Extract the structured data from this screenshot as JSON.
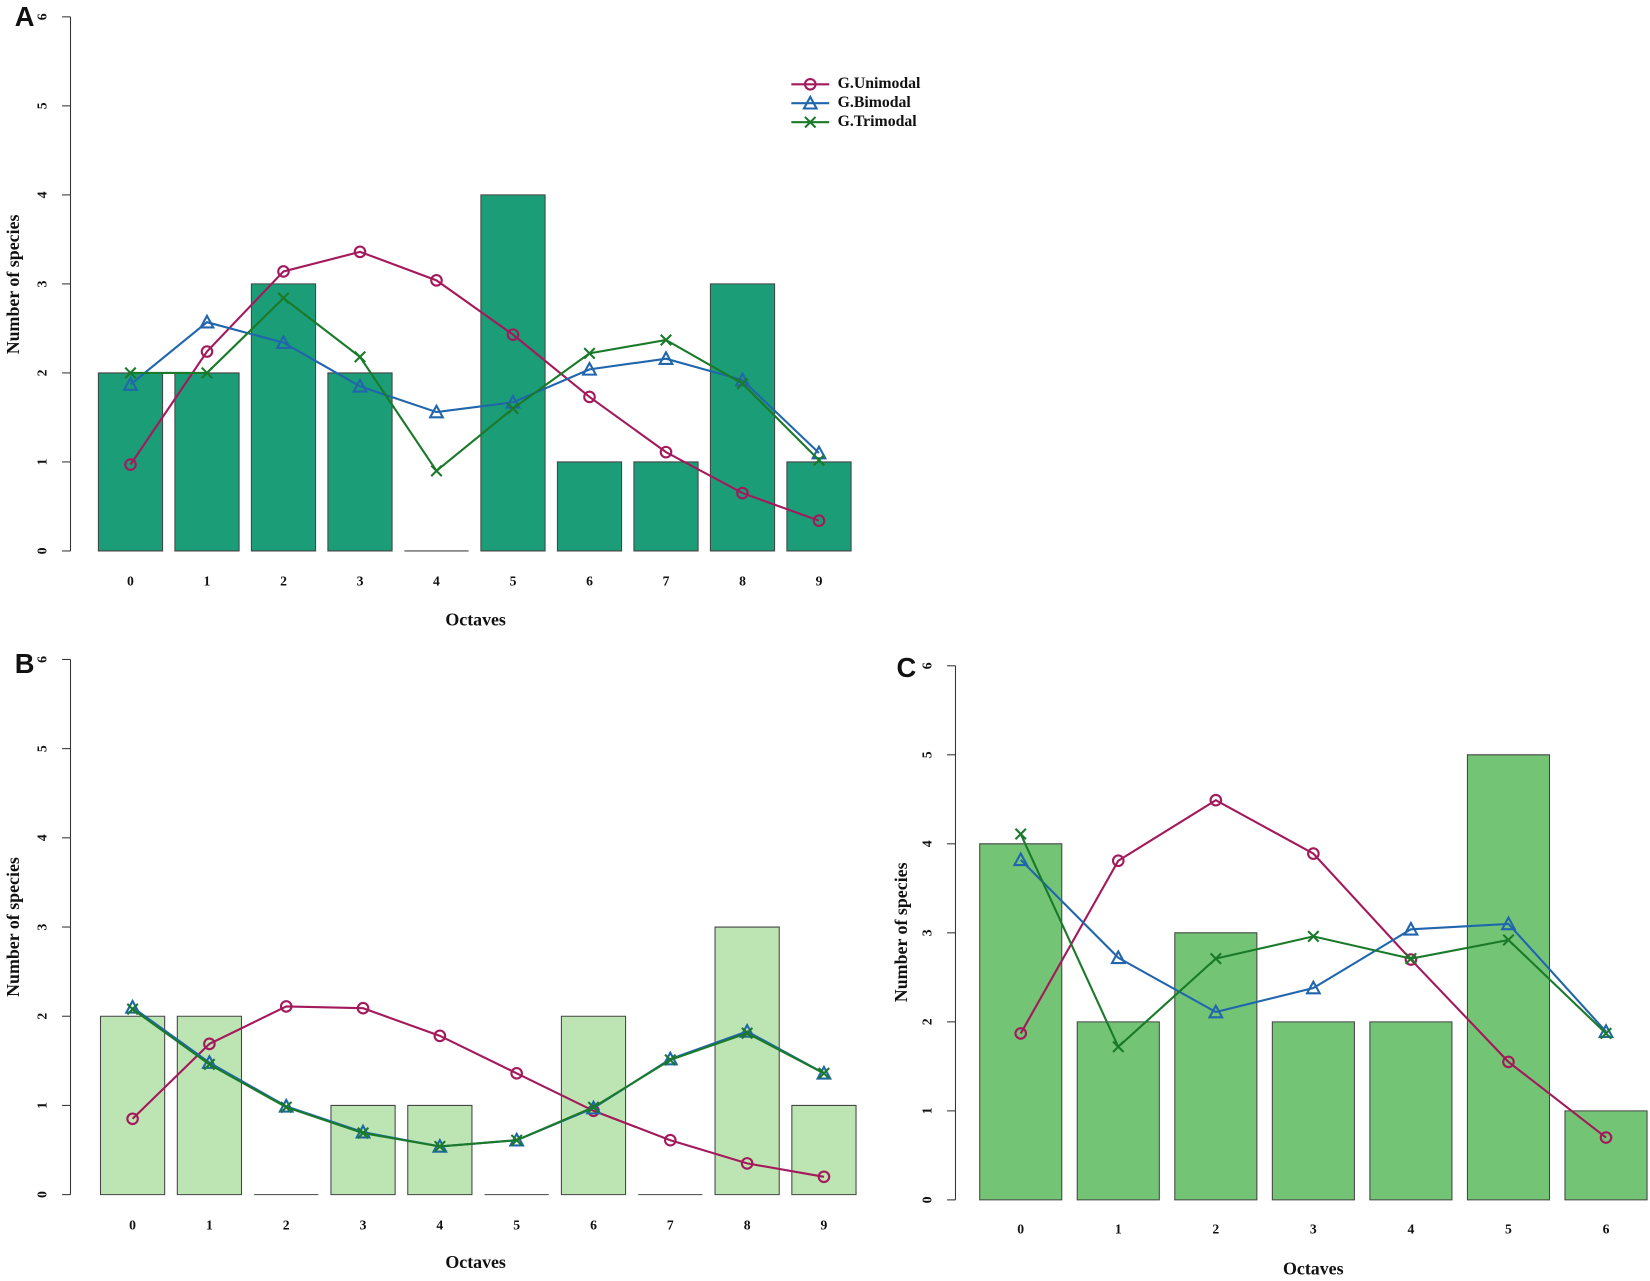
{
  "chart_data": [
    {
      "type": "bar",
      "panel": "A",
      "xlabel": "Octaves",
      "ylabel": "Number of species",
      "categories": [
        "0",
        "1",
        "2",
        "3",
        "4",
        "5",
        "6",
        "7",
        "8",
        "9"
      ],
      "values": [
        2,
        2,
        3,
        2,
        0,
        4,
        1,
        1,
        3,
        1
      ],
      "color": "#1b9e77",
      "ylim": [
        0,
        6
      ],
      "yticks": [
        0,
        1,
        2,
        3,
        4,
        5,
        6
      ],
      "legend": "top-center",
      "series": [
        {
          "name": "G.Unimodal",
          "color": "#a3195b",
          "marker": "circle",
          "values": [
            0.97,
            2.24,
            3.14,
            3.36,
            3.04,
            2.43,
            1.73,
            1.11,
            0.65,
            0.34
          ]
        },
        {
          "name": "G.Bimodal",
          "color": "#2166ac",
          "marker": "triangle",
          "values": [
            1.87,
            2.57,
            2.34,
            1.85,
            1.56,
            1.67,
            2.04,
            2.16,
            1.92,
            1.1
          ]
        },
        {
          "name": "G.Trimodal",
          "color": "#1a7a2a",
          "marker": "cross",
          "values": [
            2.0,
            2.0,
            2.84,
            2.18,
            0.9,
            1.6,
            2.22,
            2.37,
            1.88,
            1.02
          ]
        }
      ]
    },
    {
      "type": "bar",
      "panel": "B",
      "xlabel": "Octaves",
      "ylabel": "Number of species",
      "categories": [
        "0",
        "1",
        "2",
        "3",
        "4",
        "5",
        "6",
        "7",
        "8",
        "9"
      ],
      "values": [
        2,
        2,
        0,
        1,
        1,
        0,
        2,
        0,
        3,
        1
      ],
      "color": "#bde5b3",
      "ylim": [
        0,
        6
      ],
      "yticks": [
        0,
        1,
        2,
        3,
        4,
        5,
        6
      ],
      "series": [
        {
          "color": "#a3195b",
          "marker": "circle",
          "values": [
            0.85,
            1.69,
            2.11,
            2.09,
            1.78,
            1.36,
            0.94,
            0.61,
            0.35,
            0.2
          ]
        },
        {
          "color": "#2166ac",
          "marker": "triangle",
          "values": [
            2.1,
            1.48,
            0.99,
            0.7,
            0.54,
            0.61,
            0.97,
            1.52,
            1.83,
            1.36
          ]
        },
        {
          "color": "#1a7a2a",
          "marker": "cross",
          "values": [
            2.08,
            1.46,
            0.98,
            0.69,
            0.54,
            0.61,
            0.98,
            1.51,
            1.81,
            1.36
          ]
        }
      ]
    },
    {
      "type": "bar",
      "panel": "C",
      "xlabel": "Octaves",
      "ylabel": "Number of species",
      "categories": [
        "0",
        "1",
        "2",
        "3",
        "4",
        "5",
        "6"
      ],
      "values": [
        4,
        2,
        3,
        2,
        2,
        5,
        1
      ],
      "color": "#74c476",
      "ylim": [
        0,
        6
      ],
      "yticks": [
        0,
        1,
        2,
        3,
        4,
        5,
        6
      ],
      "series": [
        {
          "color": "#a3195b",
          "marker": "circle",
          "values": [
            1.87,
            3.81,
            4.49,
            3.89,
            2.7,
            1.55,
            0.7
          ]
        },
        {
          "color": "#2166ac",
          "marker": "triangle",
          "values": [
            3.82,
            2.72,
            2.11,
            2.38,
            3.04,
            3.1,
            1.89
          ]
        },
        {
          "color": "#1a7a2a",
          "marker": "cross",
          "values": [
            4.11,
            1.72,
            2.71,
            2.96,
            2.71,
            2.92,
            1.87
          ]
        }
      ]
    }
  ]
}
